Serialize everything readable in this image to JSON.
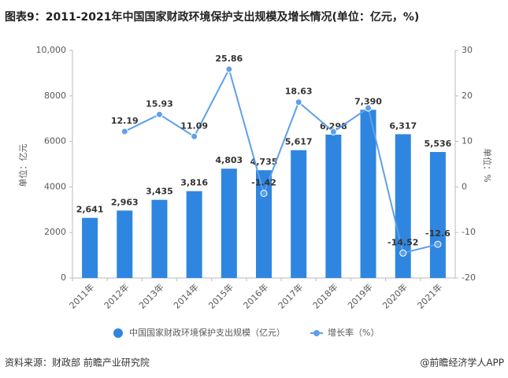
{
  "chart_data": {
    "type": "bar_line",
    "title": "图表9：2011-2021年中国国家财政环境保护支出规模及增长情况(单位：亿元，%)",
    "y_label": "单位：亿元",
    "y2_label": "单位：%",
    "categories": [
      "2011年",
      "2012年",
      "2013年",
      "2014年",
      "2015年",
      "2016年",
      "2017年",
      "2018年",
      "2019年",
      "2020年",
      "2021年"
    ],
    "series": [
      {
        "name": "中国国家财政环境保护支出规模（亿元）",
        "type": "bar",
        "color": "#2f86e0",
        "values": [
          2641,
          2963,
          3435,
          3816,
          4803,
          4735,
          5617,
          6298,
          7390,
          6317,
          5536
        ],
        "value_labels": [
          "2,641",
          "2,963",
          "3,435",
          "3,816",
          "4,803",
          "4,735",
          "5,617",
          "6,298",
          "7,390",
          "6,317",
          "5,536"
        ]
      },
      {
        "name": "增长率（%）",
        "type": "line",
        "axis": "y2",
        "color": "#5ea0e8",
        "values": [
          null,
          12.19,
          15.93,
          11.09,
          25.86,
          -1.42,
          18.63,
          12.12,
          17.34,
          -14.52,
          -12.6
        ],
        "value_labels": [
          null,
          "12.19",
          "15.93",
          "11.09",
          "25.86",
          "-1.42",
          "18.63",
          null,
          null,
          "-14.52",
          "-12.6"
        ]
      }
    ],
    "ylim": [
      0,
      10000
    ],
    "yticks": [
      0,
      2000,
      4000,
      6000,
      8000,
      {
        "value": 10000,
        "label": "10,000"
      }
    ],
    "y2lim": [
      -20,
      30
    ],
    "y2ticks": [
      -20,
      -10,
      0,
      10,
      20,
      30
    ],
    "source": "资料来源：财政部 前瞻产业研究院",
    "credit": "@前瞻经济学人APP"
  }
}
